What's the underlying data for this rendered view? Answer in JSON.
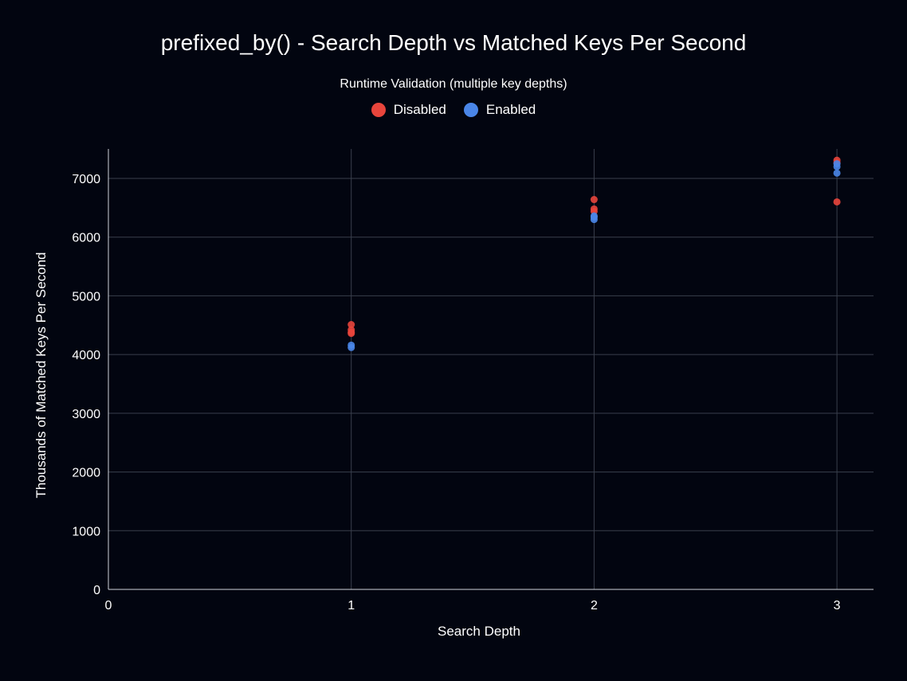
{
  "chart_data": {
    "type": "scatter",
    "title": "prefixed_by() - Search Depth vs Matched Keys Per Second",
    "legend_title": "Runtime Validation (multiple key depths)",
    "legend_placement": "top-center",
    "xlabel": "Search Depth",
    "ylabel": "Thousands of Matched Keys Per Second",
    "xlim": [
      0,
      3.15
    ],
    "ylim": [
      0,
      7500
    ],
    "x_ticks": [
      0,
      1,
      2,
      3
    ],
    "y_ticks": [
      0,
      1000,
      2000,
      3000,
      4000,
      5000,
      6000,
      7000
    ],
    "grid": true,
    "series": [
      {
        "name": "Disabled",
        "color": "#e8453c",
        "points": [
          {
            "x": 1,
            "y": 4510
          },
          {
            "x": 1,
            "y": 4420
          },
          {
            "x": 1,
            "y": 4380
          },
          {
            "x": 1,
            "y": 4360
          },
          {
            "x": 2,
            "y": 6640
          },
          {
            "x": 2,
            "y": 6480
          },
          {
            "x": 2,
            "y": 6440
          },
          {
            "x": 3,
            "y": 7310
          },
          {
            "x": 3,
            "y": 7270
          },
          {
            "x": 3,
            "y": 6600
          }
        ]
      },
      {
        "name": "Enabled",
        "color": "#4a86e8",
        "points": [
          {
            "x": 1,
            "y": 4160
          },
          {
            "x": 1,
            "y": 4120
          },
          {
            "x": 2,
            "y": 6360
          },
          {
            "x": 2,
            "y": 6340
          },
          {
            "x": 2,
            "y": 6300
          },
          {
            "x": 3,
            "y": 7250
          },
          {
            "x": 3,
            "y": 7200
          },
          {
            "x": 3,
            "y": 7090
          }
        ]
      }
    ]
  }
}
